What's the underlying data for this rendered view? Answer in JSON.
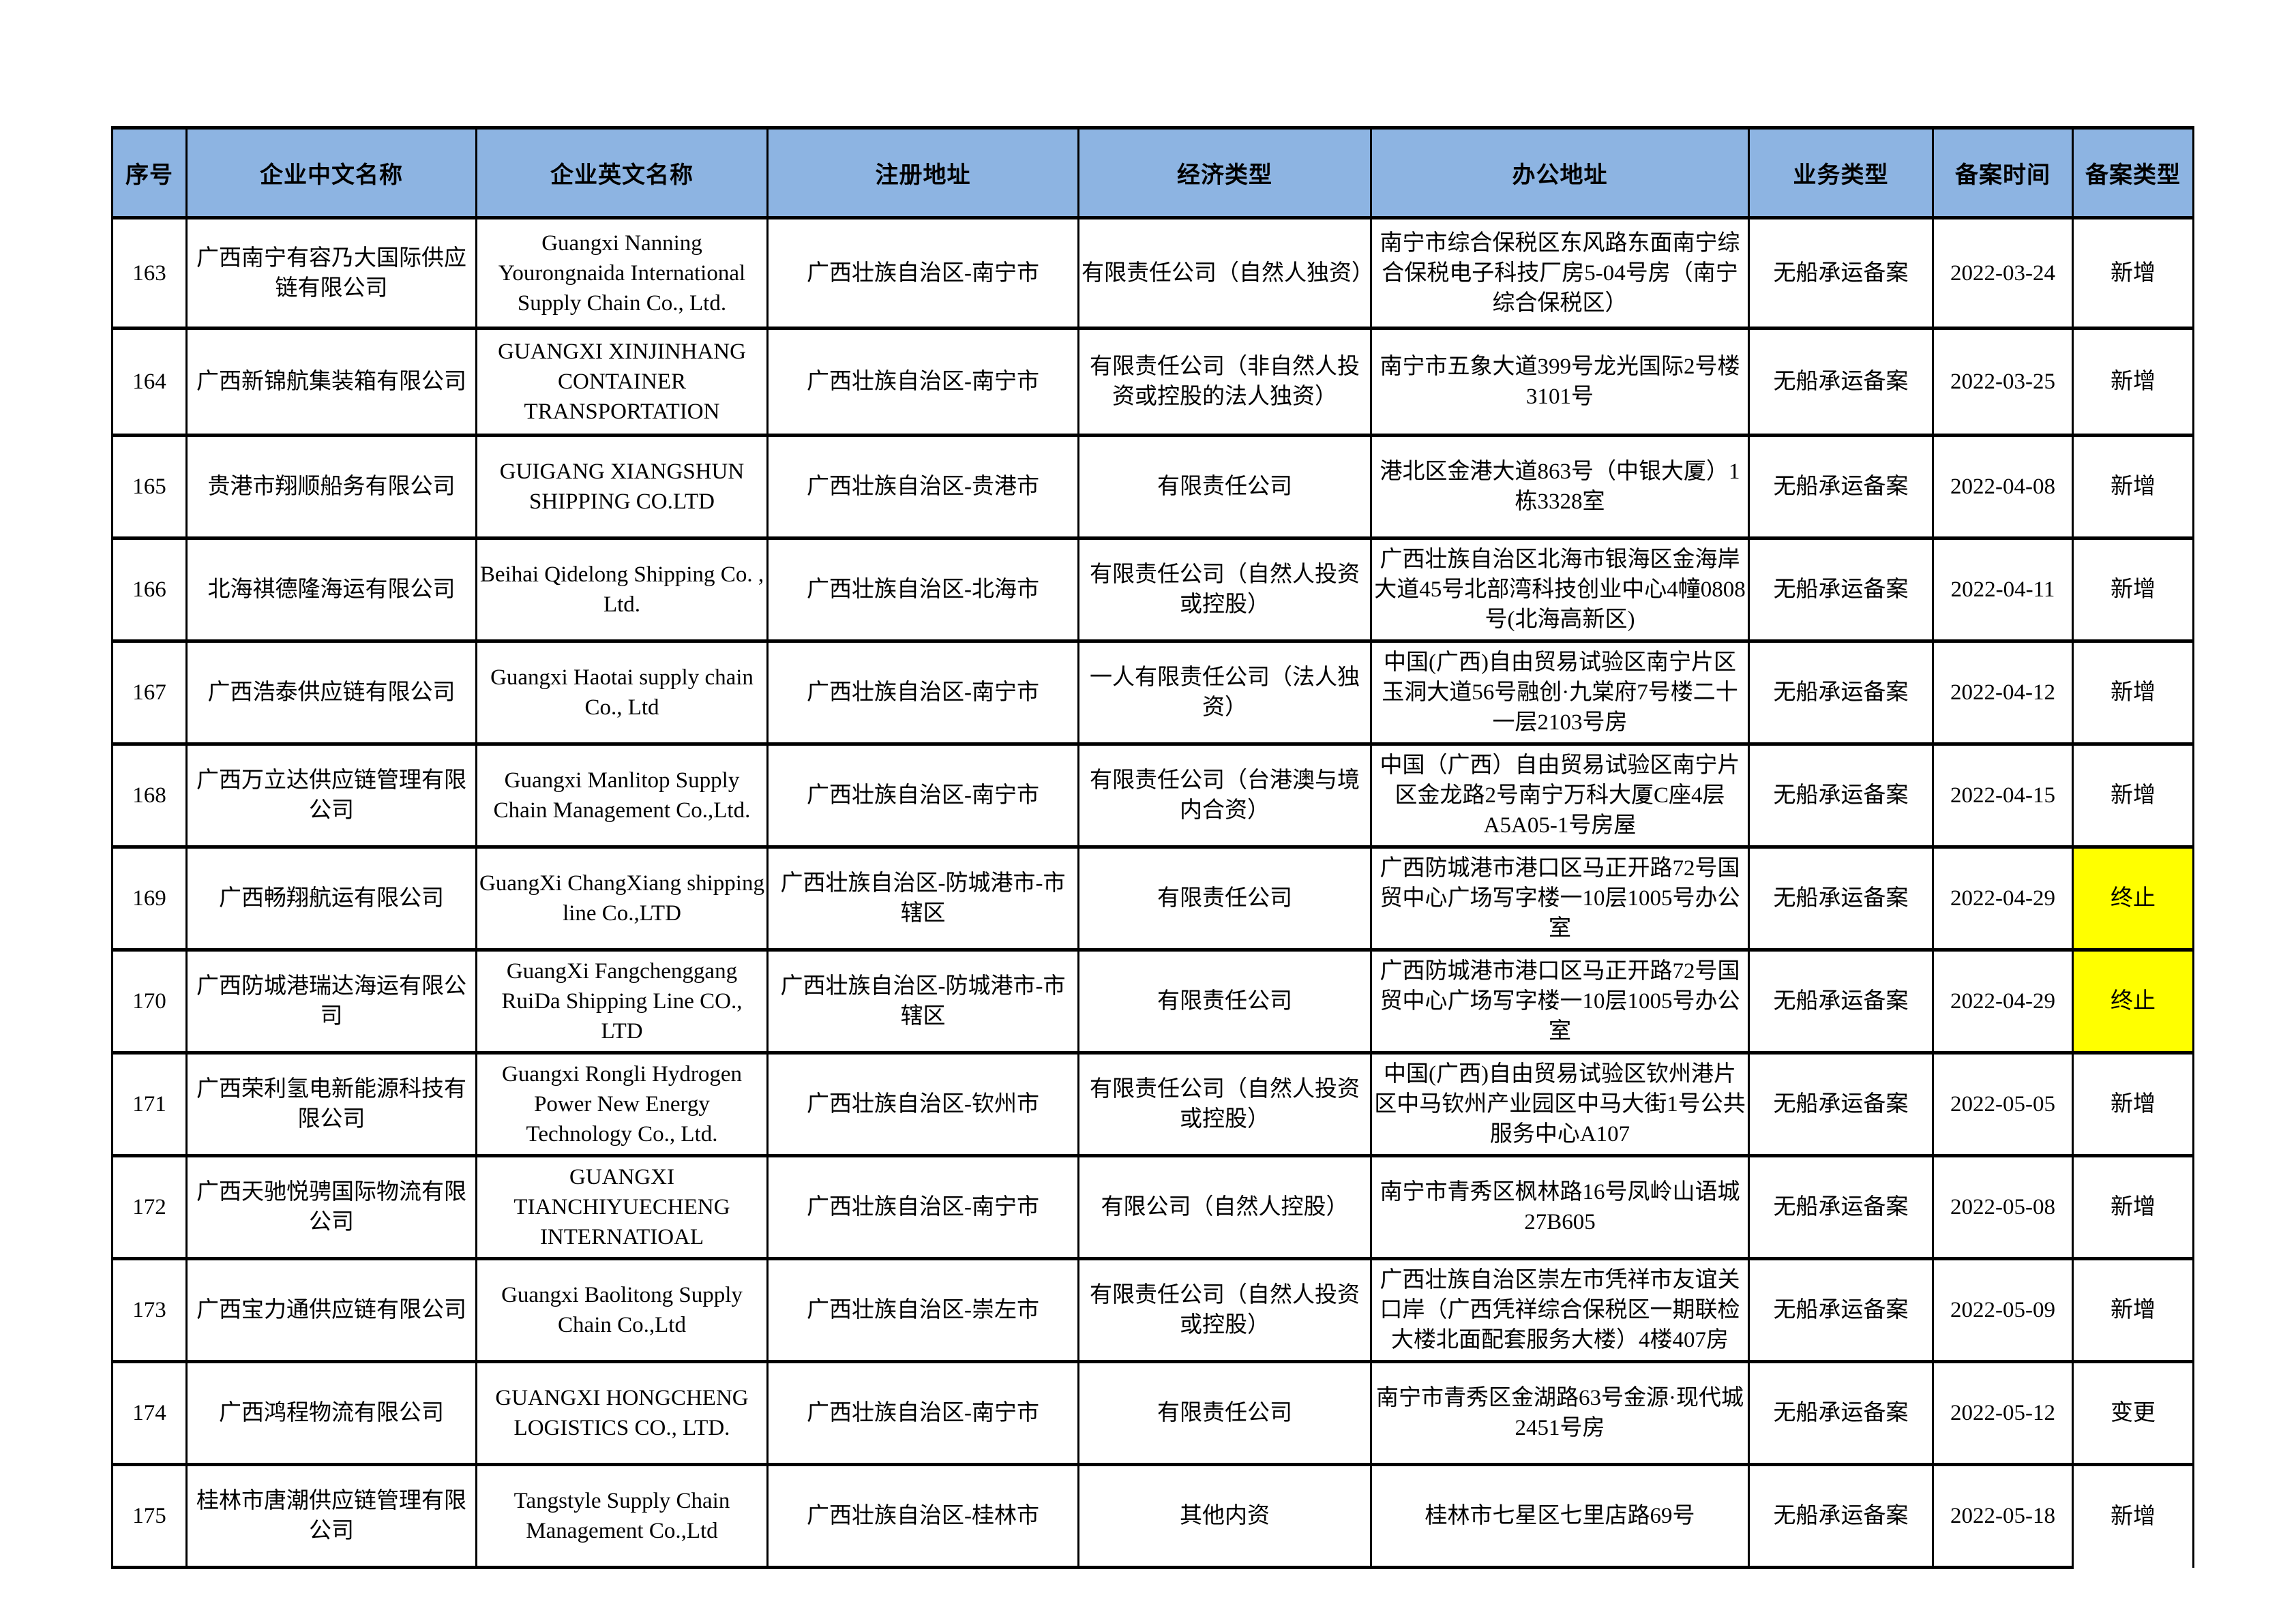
{
  "page": {
    "background": "#FFFFFF"
  },
  "table": {
    "header_bg": "#8DB4E2",
    "highlight_color": "#FFFF00",
    "header": {
      "columns": [
        "序号",
        "企业中文名称",
        "企业英文名称",
        "注册地址",
        "经济类型",
        "办公地址",
        "业务类型",
        "备案时间",
        "备案类型"
      ]
    },
    "rows": [
      {
        "seq": "163",
        "cn": "广西南宁有容乃大国际供应链有限公司",
        "en": "Guangxi Nanning Yourongnaida International Supply Chain Co., Ltd.",
        "reg": "广西壮族自治区-南宁市",
        "econ": "有限责任公司（自然人独资）",
        "office": "南宁市综合保税区东风路东面南宁综合保税电子科技厂房5-04号房（南宁综合保税区）",
        "biz": "无船承运备案",
        "date": "2022-03-24",
        "type": "新增",
        "type_highlight": false
      },
      {
        "seq": "164",
        "cn": "广西新锦航集装箱有限公司",
        "en": "GUANGXI XINJINHANG CONTAINER TRANSPORTATION",
        "reg": "广西壮族自治区-南宁市",
        "econ": "有限责任公司（非自然人投资或控股的法人独资）",
        "office": "南宁市五象大道399号龙光国际2号楼3101号",
        "biz": "无船承运备案",
        "date": "2022-03-25",
        "type": "新增",
        "type_highlight": false
      },
      {
        "seq": "165",
        "cn": "贵港市翔顺船务有限公司",
        "en": "GUIGANG XIANGSHUN SHIPPING CO.LTD",
        "reg": "广西壮族自治区-贵港市",
        "econ": "有限责任公司",
        "office": "港北区金港大道863号（中银大厦）1栋3328室",
        "biz": "无船承运备案",
        "date": "2022-04-08",
        "type": "新增",
        "type_highlight": false
      },
      {
        "seq": "166",
        "cn": "北海祺德隆海运有限公司",
        "en": "Beihai Qidelong Shipping Co. , Ltd.",
        "reg": "广西壮族自治区-北海市",
        "econ": "有限责任公司（自然人投资或控股）",
        "office": "广西壮族自治区北海市银海区金海岸大道45号北部湾科技创业中心4幢0808号(北海高新区)",
        "biz": "无船承运备案",
        "date": "2022-04-11",
        "type": "新增",
        "type_highlight": false
      },
      {
        "seq": "167",
        "cn": "广西浩泰供应链有限公司",
        "en": "Guangxi Haotai supply chain Co., Ltd",
        "reg": "广西壮族自治区-南宁市",
        "econ": "一人有限责任公司（法人独资）",
        "office": "中国(广西)自由贸易试验区南宁片区玉洞大道56号融创·九棠府7号楼二十一层2103号房",
        "biz": "无船承运备案",
        "date": "2022-04-12",
        "type": "新增",
        "type_highlight": false
      },
      {
        "seq": "168",
        "cn": "广西万立达供应链管理有限公司",
        "en": "Guangxi Manlitop Supply Chain Management Co.,Ltd.",
        "reg": "广西壮族自治区-南宁市",
        "econ": "有限责任公司（台港澳与境内合资）",
        "office": "中国（广西）自由贸易试验区南宁片区金龙路2号南宁万科大厦C座4层A5A05-1号房屋",
        "biz": "无船承运备案",
        "date": "2022-04-15",
        "type": "新增",
        "type_highlight": false
      },
      {
        "seq": "169",
        "cn": "广西畅翔航运有限公司",
        "en": "GuangXi ChangXiang shipping line Co.,LTD",
        "reg": "广西壮族自治区-防城港市-市辖区",
        "econ": "有限责任公司",
        "office": "广西防城港市港口区马正开路72号国贸中心广场写字楼一10层1005号办公室",
        "biz": "无船承运备案",
        "date": "2022-04-29",
        "type": "终止",
        "type_highlight": true
      },
      {
        "seq": "170",
        "cn": "广西防城港瑞达海运有限公司",
        "en": "GuangXi Fangchenggang RuiDa Shipping Line CO., LTD",
        "reg": "广西壮族自治区-防城港市-市辖区",
        "econ": "有限责任公司",
        "office": "广西防城港市港口区马正开路72号国贸中心广场写字楼一10层1005号办公室",
        "biz": "无船承运备案",
        "date": "2022-04-29",
        "type": "终止",
        "type_highlight": true
      },
      {
        "seq": "171",
        "cn": "广西荣利氢电新能源科技有限公司",
        "en": "Guangxi Rongli Hydrogen Power New Energy Technology Co., Ltd.",
        "reg": "广西壮族自治区-钦州市",
        "econ": "有限责任公司（自然人投资或控股）",
        "office": "中国(广西)自由贸易试验区钦州港片区中马钦州产业园区中马大街1号公共服务中心A107",
        "biz": "无船承运备案",
        "date": "2022-05-05",
        "type": "新增",
        "type_highlight": false
      },
      {
        "seq": "172",
        "cn": "广西天驰悦骋国际物流有限公司",
        "en": "GUANGXI TIANCHIYUECHENG INTERNATIOAL",
        "reg": "广西壮族自治区-南宁市",
        "econ": "有限公司（自然人控股）",
        "office": "南宁市青秀区枫林路16号凤岭山语城27B605",
        "biz": "无船承运备案",
        "date": "2022-05-08",
        "type": "新增",
        "type_highlight": false
      },
      {
        "seq": "173",
        "cn": "广西宝力通供应链有限公司",
        "en": "Guangxi Baolitong Supply Chain  Co.,Ltd",
        "reg": "广西壮族自治区-崇左市",
        "econ": "有限责任公司（自然人投资或控股）",
        "office": "广西壮族自治区崇左市凭祥市友谊关口岸（广西凭祥综合保税区一期联检大楼北面配套服务大楼）4楼407房",
        "biz": "无船承运备案",
        "date": "2022-05-09",
        "type": "新增",
        "type_highlight": false
      },
      {
        "seq": "174",
        "cn": "广西鸿程物流有限公司",
        "en": "GUANGXI HONGCHENG LOGISTICS CO., LTD.",
        "reg": "广西壮族自治区-南宁市",
        "econ": "有限责任公司",
        "office": "南宁市青秀区金湖路63号金源·现代城2451号房",
        "biz": "无船承运备案",
        "date": "2022-05-12",
        "type": "变更",
        "type_highlight": false
      },
      {
        "seq": "175",
        "cn": "桂林市唐潮供应链管理有限公司",
        "en": "Tangstyle Supply Chain Management Co.,Ltd",
        "reg": "广西壮族自治区-桂林市",
        "econ": "其他内资",
        "office": "桂林市七星区七里店路69号",
        "biz": "无船承运备案",
        "date": "2022-05-18",
        "type": "新增",
        "type_highlight": false
      }
    ]
  }
}
